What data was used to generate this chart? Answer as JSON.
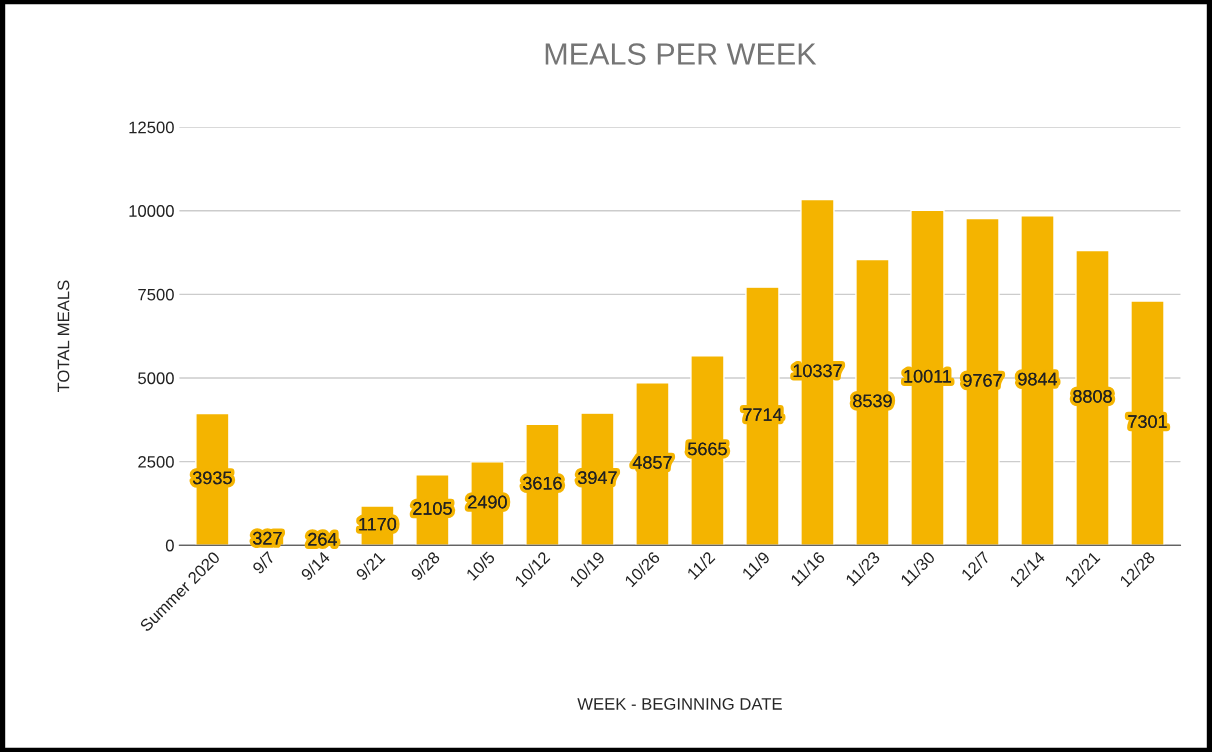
{
  "chart_data": {
    "type": "bar",
    "title": "MEALS PER WEEK",
    "xlabel": "WEEK - BEGINNING DATE",
    "ylabel": "TOTAL MEALS",
    "categories": [
      "Summer 2020",
      "9/7",
      "9/14",
      "9/21",
      "9/28",
      "10/5",
      "10/12",
      "10/19",
      "10/26",
      "11/2",
      "11/9",
      "11/16",
      "11/23",
      "11/30",
      "12/7",
      "12/14",
      "12/21",
      "12/28"
    ],
    "values": [
      3935,
      327,
      264,
      1170,
      2105,
      2490,
      3616,
      3947,
      4857,
      5665,
      7714,
      10337,
      8539,
      10011,
      9767,
      9844,
      8808,
      7301
    ],
    "color": "#f4b400",
    "ylim": [
      0,
      12500
    ],
    "yticks": [
      0,
      2500,
      5000,
      7500,
      10000,
      12500
    ],
    "grid": "y",
    "data_labels": true
  }
}
